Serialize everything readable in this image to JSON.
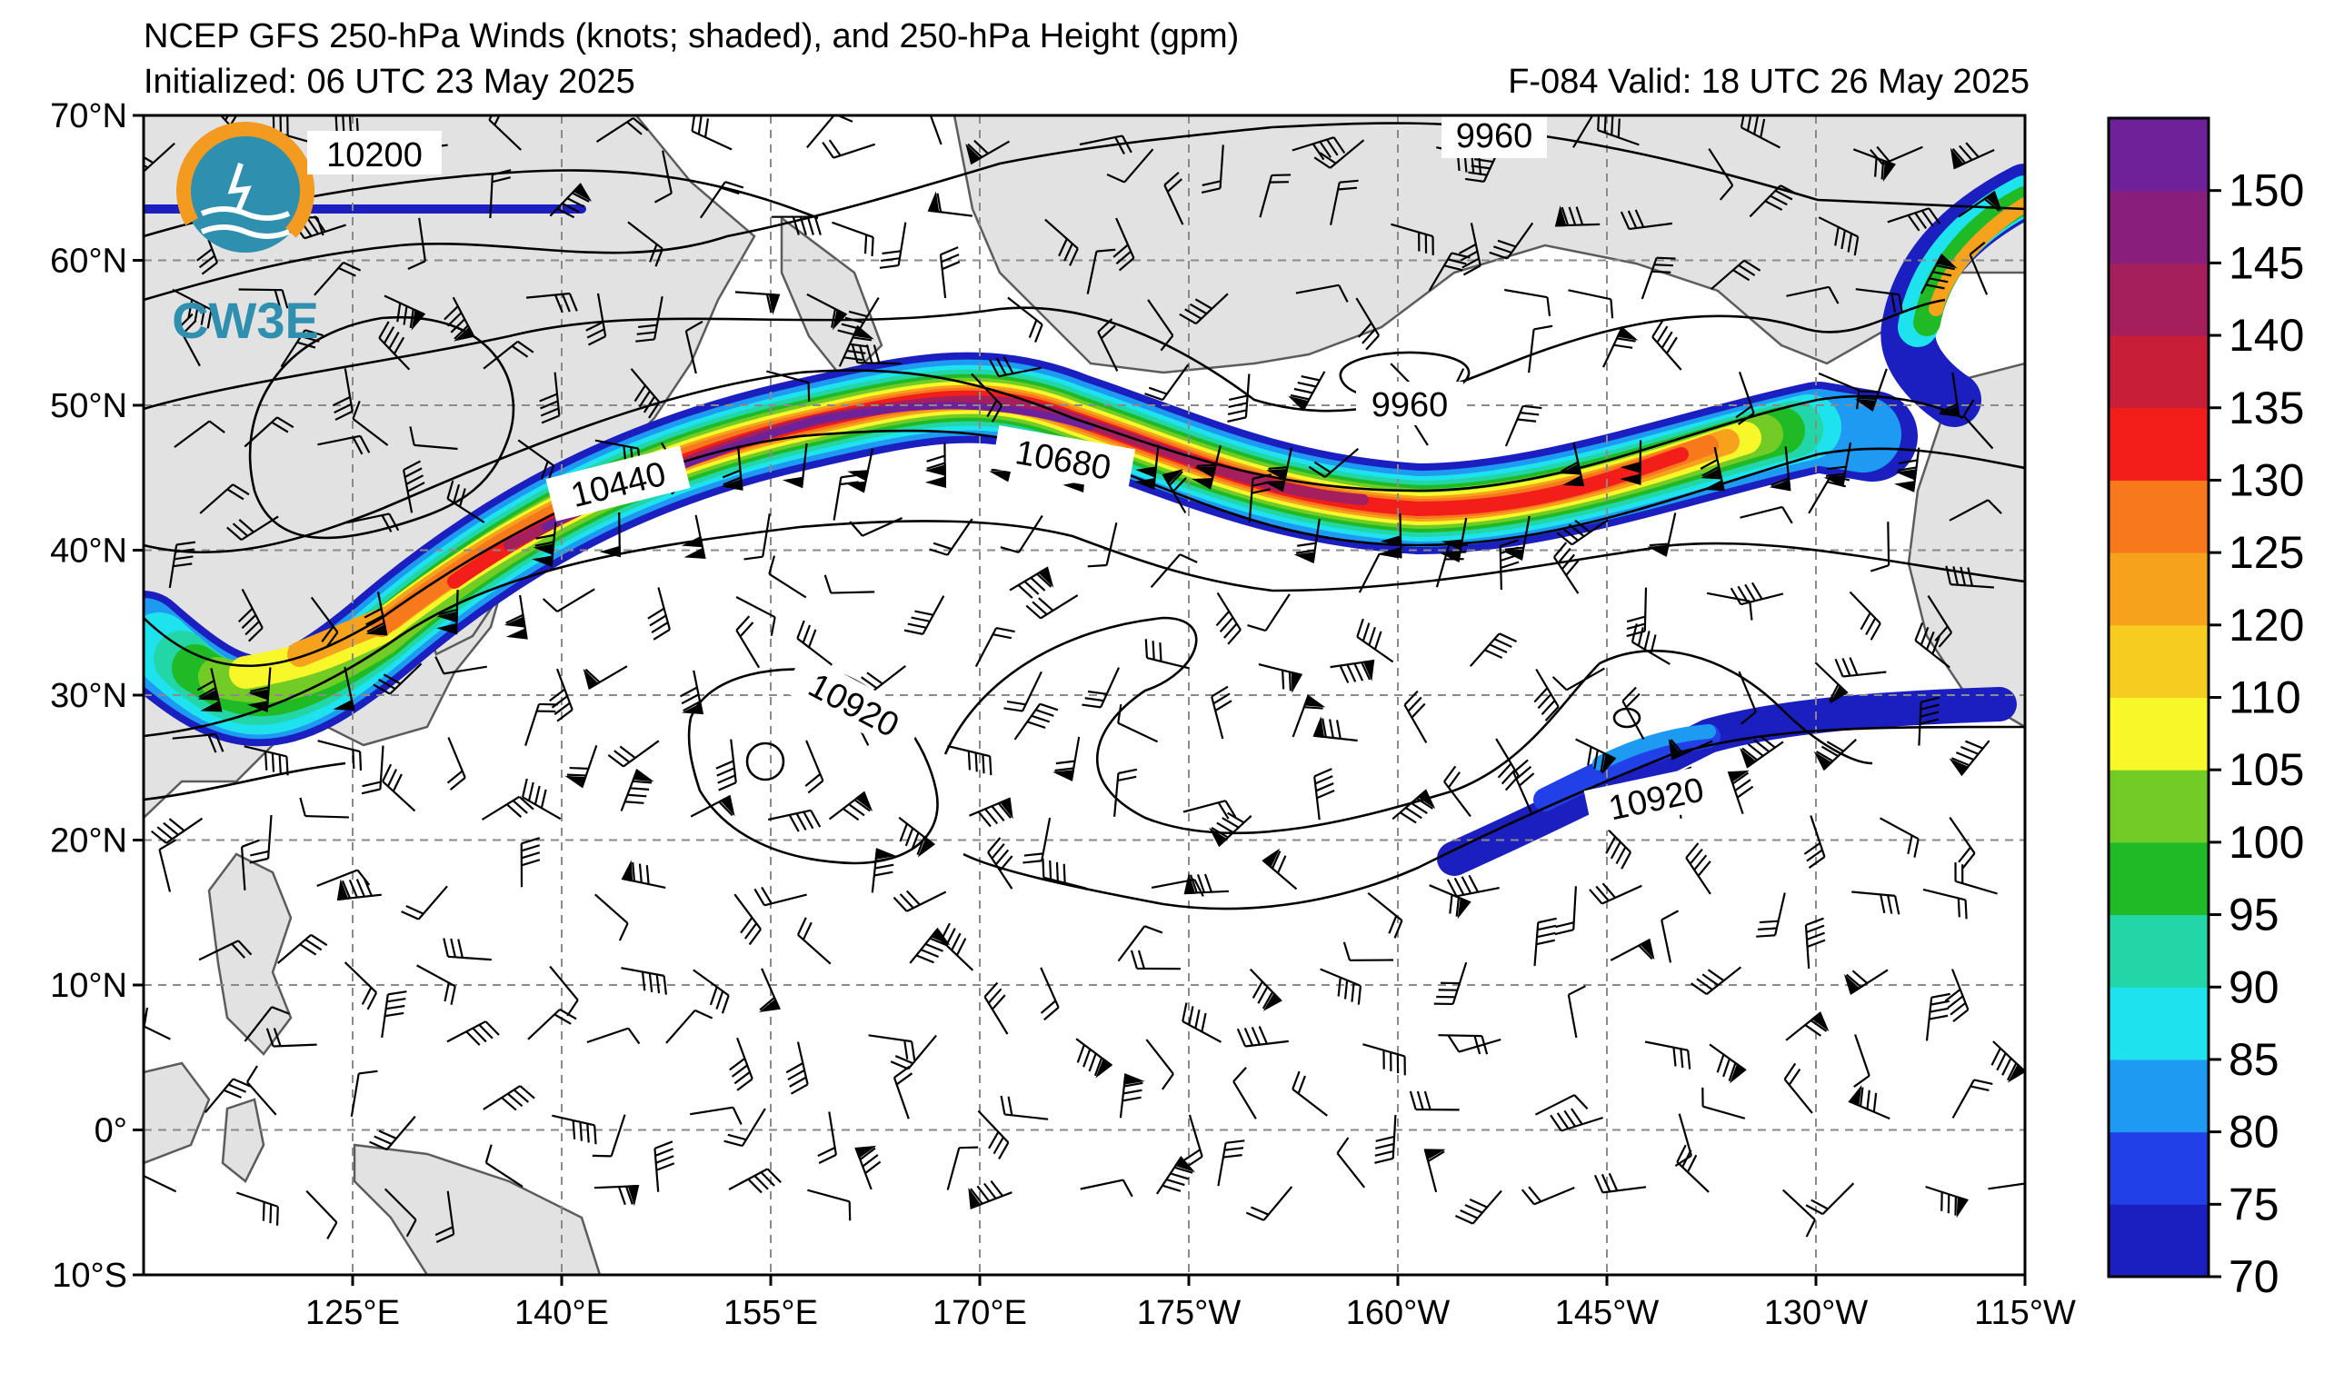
{
  "header": {
    "title": "NCEP GFS 250-hPa Winds (knots; shaded), and 250-hPa Height (gpm)",
    "initialized": "Initialized: 06 UTC 23 May 2025",
    "valid": "F-084  Valid: 18 UTC 26 May 2025"
  },
  "logo": {
    "text": "CW3E",
    "colors": {
      "ring": "#f39a21",
      "globe": "#2e8fae"
    }
  },
  "axes": {
    "lat_labels": [
      "70°N",
      "60°N",
      "50°N",
      "40°N",
      "30°N",
      "20°N",
      "10°N",
      "0°",
      "10°S"
    ],
    "lon_labels": [
      "125°E",
      "140°E",
      "155°E",
      "170°E",
      "175°W",
      "160°W",
      "145°W",
      "130°W",
      "115°W"
    ]
  },
  "colorbar": {
    "tick_labels": [
      "70",
      "75",
      "80",
      "85",
      "90",
      "95",
      "100",
      "105",
      "110",
      "120",
      "125",
      "130",
      "135",
      "140",
      "145",
      "150"
    ],
    "colors": [
      "#1c1fbf",
      "#2140e8",
      "#1f9af2",
      "#1ee3ee",
      "#23d6a8",
      "#20ba27",
      "#72cc25",
      "#f7f72a",
      "#f7cc21",
      "#f7a21d",
      "#f7791b",
      "#f31e1a",
      "#c81e38",
      "#a51f5c",
      "#8a1e7c",
      "#6f219a"
    ]
  },
  "contour_labels": [
    {
      "text": "10200"
    },
    {
      "text": "9960"
    },
    {
      "text": "9960"
    },
    {
      "text": "10440"
    },
    {
      "text": "10680"
    },
    {
      "text": "10920"
    },
    {
      "text": "10920"
    }
  ],
  "map": {
    "lon_range": [
      110,
      245
    ],
    "lat_range": [
      -10,
      70
    ],
    "colors": {
      "land": "#e2e2e2",
      "coast": "#5c5c5c",
      "grid": "#8a8a8a",
      "contour": "#000000"
    }
  }
}
